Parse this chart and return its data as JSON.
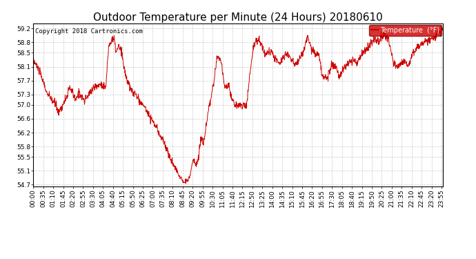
{
  "title": "Outdoor Temperature per Minute (24 Hours) 20180610",
  "copyright": "Copyright 2018 Cartronics.com",
  "legend_label": "Temperature  (°F)",
  "legend_bg": "#cc0000",
  "legend_fg": "#ffffff",
  "line_color": "#cc0000",
  "bg_color": "#ffffff",
  "plot_bg": "#ffffff",
  "grid_color": "#bbbbbb",
  "yticks": [
    54.7,
    55.1,
    55.5,
    55.8,
    56.2,
    56.6,
    57.0,
    57.3,
    57.7,
    58.1,
    58.5,
    58.8,
    59.2
  ],
  "ymin": 54.65,
  "ymax": 59.35,
  "title_fontsize": 11,
  "axis_fontsize": 6.5,
  "copyright_fontsize": 6.5,
  "tick_interval_min": 35
}
